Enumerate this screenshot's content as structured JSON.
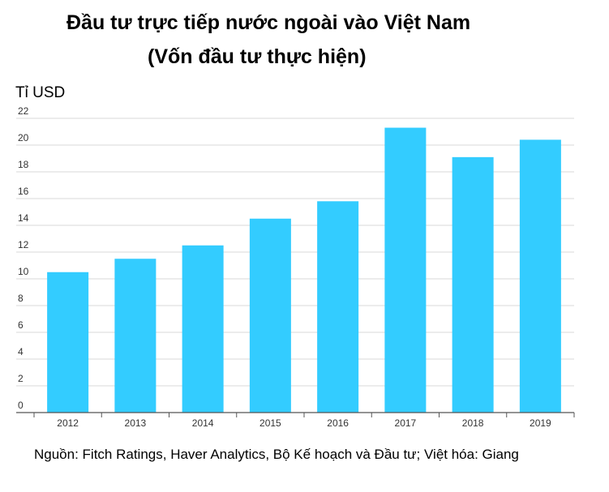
{
  "title_line1": "Đầu tư trực tiếp nước ngoài vào Việt Nam",
  "title_line2": "(Vốn đầu tư thực hiện)",
  "unit_label": "Tỉ USD",
  "source": "Nguồn: Fitch Ratings, Haver Analytics, Bộ Kế hoạch và Đầu tư; Việt hóa: Giang",
  "colors": {
    "bar": "#33CCFF",
    "grid": "#d9d9d9",
    "axis": "#555555"
  },
  "chart_data": {
    "type": "bar",
    "title": "Đầu tư trực tiếp nước ngoài vào Việt Nam (Vốn đầu tư thực hiện)",
    "ylabel": "Tỉ USD",
    "xlabel": "",
    "categories": [
      "2012",
      "2013",
      "2014",
      "2015",
      "2016",
      "2017",
      "2018",
      "2019"
    ],
    "values": [
      10.5,
      11.5,
      12.5,
      14.5,
      15.8,
      21.3,
      19.1,
      20.4
    ],
    "ylim": [
      0,
      22
    ],
    "yticks": [
      0,
      2,
      4,
      6,
      8,
      10,
      12,
      14,
      16,
      18,
      20,
      22
    ],
    "grid": true,
    "legend": "none"
  }
}
